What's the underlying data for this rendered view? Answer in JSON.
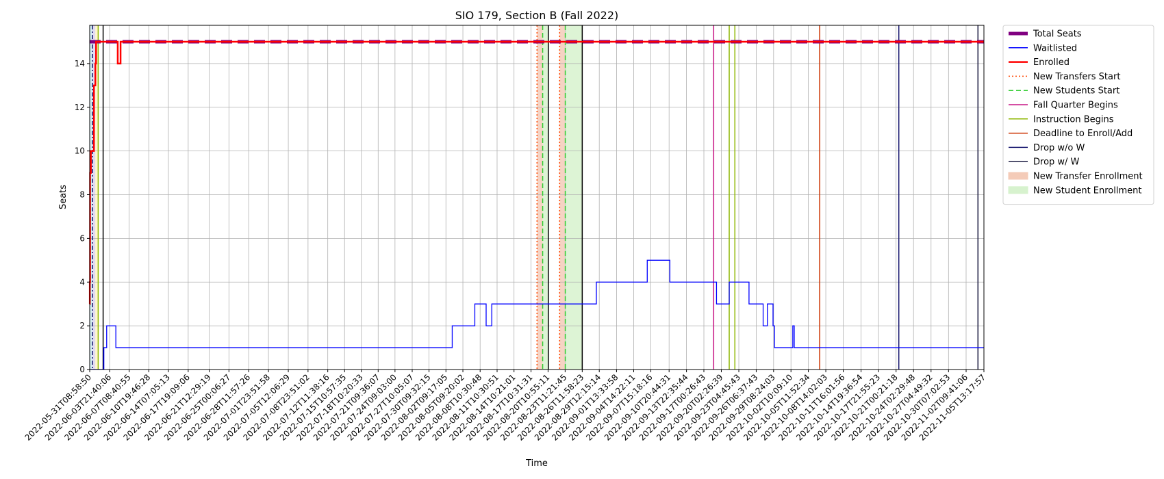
{
  "chart_data": {
    "type": "line",
    "title": "SIO 179, Section B (Fall 2022)",
    "xlabel": "Time",
    "ylabel": "Seats",
    "ylim": [
      0,
      15.75
    ],
    "yticks": [
      0,
      2,
      4,
      6,
      8,
      10,
      12,
      14
    ],
    "grid": true,
    "legend_position": "outside-right",
    "x_range": [
      "2022-05-31T08:58:50",
      "2022-11-05T13:17:57"
    ],
    "x_ticks": [
      "2022-05-31T08:58:50",
      "2022-06-03T21:40:06",
      "2022-06-07T08:40:55",
      "2022-06-10T19:46:28",
      "2022-06-14T07:05:13",
      "2022-06-17T19:09:06",
      "2022-06-21T12:29:19",
      "2022-06-25T00:06:27",
      "2022-06-28T11:57:26",
      "2022-07-01T23:51:58",
      "2022-07-05T12:06:29",
      "2022-07-08T23:51:02",
      "2022-07-12T11:38:16",
      "2022-07-15T10:57:35",
      "2022-07-18T10:20:33",
      "2022-07-21T09:36:07",
      "2022-07-24T09:03:00",
      "2022-07-27T10:05:07",
      "2022-07-30T09:32:15",
      "2022-08-02T09:17:05",
      "2022-08-05T09:20:02",
      "2022-08-08T10:30:48",
      "2022-08-11T10:30:51",
      "2022-08-14T10:21:01",
      "2022-08-17T10:31:31",
      "2022-08-20T10:55:11",
      "2022-08-23T11:21:45",
      "2022-08-26T11:58:23",
      "2022-08-29T12:15:14",
      "2022-09-01T13:33:58",
      "2022-09-04T14:22:11",
      "2022-09-07T15:18:16",
      "2022-09-10T20:44:31",
      "2022-09-13T22:35:44",
      "2022-09-17T00:26:43",
      "2022-09-20T02:26:39",
      "2022-09-23T04:45:43",
      "2022-09-26T06:37:43",
      "2022-09-29T08:24:03",
      "2022-10-02T10:09:10",
      "2022-10-05T11:52:34",
      "2022-10-08T14:02:03",
      "2022-10-11T16:01:56",
      "2022-10-14T19:36:54",
      "2022-10-17T21:55:23",
      "2022-10-21T00:21:18",
      "2022-10-24T02:29:48",
      "2022-10-27T04:49:32",
      "2022-10-30T07:02:53",
      "2022-11-02T09:41:06",
      "2022-11-05T13:17:57"
    ],
    "series": [
      {
        "name": "Total Seats",
        "color": "#800080",
        "style": "dashed-thick",
        "points": [
          [
            "2022-05-31T08:58:50",
            15
          ],
          [
            "2022-11-05T13:17:57",
            15
          ]
        ]
      },
      {
        "name": "Waitlisted",
        "color": "#0000ff",
        "style": "step",
        "points": [
          [
            "2022-05-31T08:58:50",
            0
          ],
          [
            "2022-06-02T19:00:00",
            0
          ],
          [
            "2022-06-02T21:00:00",
            1
          ],
          [
            "2022-06-03T09:00:00",
            2
          ],
          [
            "2022-06-05T00:00:00",
            1
          ],
          [
            "2022-08-03T12:00:00",
            2
          ],
          [
            "2022-08-07T12:00:00",
            3
          ],
          [
            "2022-08-09T12:00:00",
            2
          ],
          [
            "2022-08-10T12:00:00",
            3
          ],
          [
            "2022-08-29T00:00:00",
            4
          ],
          [
            "2022-09-07T00:00:00",
            5
          ],
          [
            "2022-09-11T00:00:00",
            4
          ],
          [
            "2022-09-19T06:00:00",
            3
          ],
          [
            "2022-09-21T12:00:00",
            4
          ],
          [
            "2022-09-25T00:00:00",
            3
          ],
          [
            "2022-09-27T12:00:00",
            2
          ],
          [
            "2022-09-28T06:00:00",
            3
          ],
          [
            "2022-09-29T06:00:00",
            2
          ],
          [
            "2022-09-29T12:00:00",
            1
          ],
          [
            "2022-10-02T18:00:00",
            2
          ],
          [
            "2022-10-03T00:00:00",
            1
          ],
          [
            "2022-11-05T13:17:57",
            1
          ]
        ]
      },
      {
        "name": "Enrolled",
        "color": "#ff0000",
        "style": "step-thick",
        "points": [
          [
            "2022-05-31T08:58:50",
            3
          ],
          [
            "2022-05-31T09:30:00",
            4
          ],
          [
            "2022-05-31T10:30:00",
            9
          ],
          [
            "2022-05-31T14:00:00",
            10
          ],
          [
            "2022-06-01T03:00:00",
            13
          ],
          [
            "2022-06-01T09:00:00",
            14
          ],
          [
            "2022-06-01T12:00:00",
            15
          ],
          [
            "2022-06-05T08:00:00",
            14
          ],
          [
            "2022-06-05T20:00:00",
            15
          ],
          [
            "2022-11-05T13:17:57",
            15
          ]
        ]
      }
    ],
    "vertical_lines": [
      {
        "name": "New Transfers Start",
        "color": "#ff4500",
        "style": "dotted",
        "x": [
          "2022-08-18T12:00:00",
          "2022-08-22T12:00:00"
        ]
      },
      {
        "name": "New Students Start",
        "color": "#32cd32",
        "style": "dashed",
        "x": [
          "2022-08-19T12:00:00",
          "2022-08-23T12:00:00"
        ]
      },
      {
        "name": "Fall Quarter Begins",
        "color": "#c71585",
        "style": "solid",
        "x": [
          "2022-09-18T18:00:00"
        ]
      },
      {
        "name": "Instruction Begins",
        "color": "#8db600",
        "style": "solid",
        "x": [
          "2022-09-21T12:00:00"
        ]
      },
      {
        "name": "Deadline to Enroll/Add",
        "color": "#cc3300",
        "style": "solid",
        "x": [
          "2022-10-07T12:00:00"
        ]
      },
      {
        "name": "Drop w/o W",
        "color": "#191970",
        "style": "solid",
        "x": [
          "2022-10-21T12:00:00"
        ]
      },
      {
        "name": "Drop w/ W",
        "color": "#1a1a40",
        "style": "solid",
        "x": [
          "2022-11-04T12:00:00"
        ]
      }
    ],
    "black_lines": [
      "2022-06-02T18:00:00",
      "2022-08-20T12:00:00",
      "2022-08-26T12:00:00"
    ],
    "extra_vlines": [
      {
        "color": "#8db600",
        "style": "solid",
        "x": "2022-06-01T21:00:00"
      },
      {
        "color": "#8db600",
        "style": "solid",
        "x": "2022-09-22T12:00:00"
      },
      {
        "color": "#191970",
        "style": "dashdot",
        "x": "2022-05-31T21:00:00"
      }
    ],
    "shaded_regions": [
      {
        "name": "New Transfer Enrollment",
        "color": "#f4cbb8",
        "from": "2022-08-18T12:00:00",
        "to": "2022-08-19T12:00:00"
      },
      {
        "name": "New Transfer Enrollment",
        "color": "#f4cbb8",
        "from": "2022-08-22T12:00:00",
        "to": "2022-08-23T12:00:00"
      },
      {
        "name": "New Student Enrollment",
        "color": "#d7f2ce",
        "from": "2022-08-19T12:00:00",
        "to": "2022-08-20T12:00:00"
      },
      {
        "name": "New Student Enrollment",
        "color": "#d7f2ce",
        "from": "2022-08-23T12:00:00",
        "to": "2022-08-26T12:00:00"
      },
      {
        "color": "#cdeef0",
        "from": "2022-05-31T08:58:50",
        "to": "2022-05-31T20:00:00"
      },
      {
        "color": "#dcd3ee",
        "from": "2022-05-31T20:00:00",
        "to": "2022-06-01T09:00:00"
      },
      {
        "color": "#fff4c2",
        "from": "2022-06-01T09:00:00",
        "to": "2022-06-02T00:00:00"
      }
    ],
    "legend": [
      {
        "label": "Total Seats",
        "color": "#800080",
        "kind": "line-thick"
      },
      {
        "label": "Waitlisted",
        "color": "#0000ff",
        "kind": "line"
      },
      {
        "label": "Enrolled",
        "color": "#ff0000",
        "kind": "line-medium"
      },
      {
        "label": "New Transfers Start",
        "color": "#ff4500",
        "kind": "dotted"
      },
      {
        "label": "New Students Start",
        "color": "#32cd32",
        "kind": "dashed"
      },
      {
        "label": "Fall Quarter Begins",
        "color": "#c71585",
        "kind": "line"
      },
      {
        "label": "Instruction Begins",
        "color": "#8db600",
        "kind": "line"
      },
      {
        "label": "Deadline to Enroll/Add",
        "color": "#cc3300",
        "kind": "line"
      },
      {
        "label": "Drop w/o W",
        "color": "#191970",
        "kind": "line"
      },
      {
        "label": "Drop w/ W",
        "color": "#1a1a40",
        "kind": "line"
      },
      {
        "label": "New Transfer Enrollment",
        "color": "#f4cbb8",
        "kind": "patch"
      },
      {
        "label": "New Student Enrollment",
        "color": "#d7f2ce",
        "kind": "patch"
      }
    ]
  }
}
